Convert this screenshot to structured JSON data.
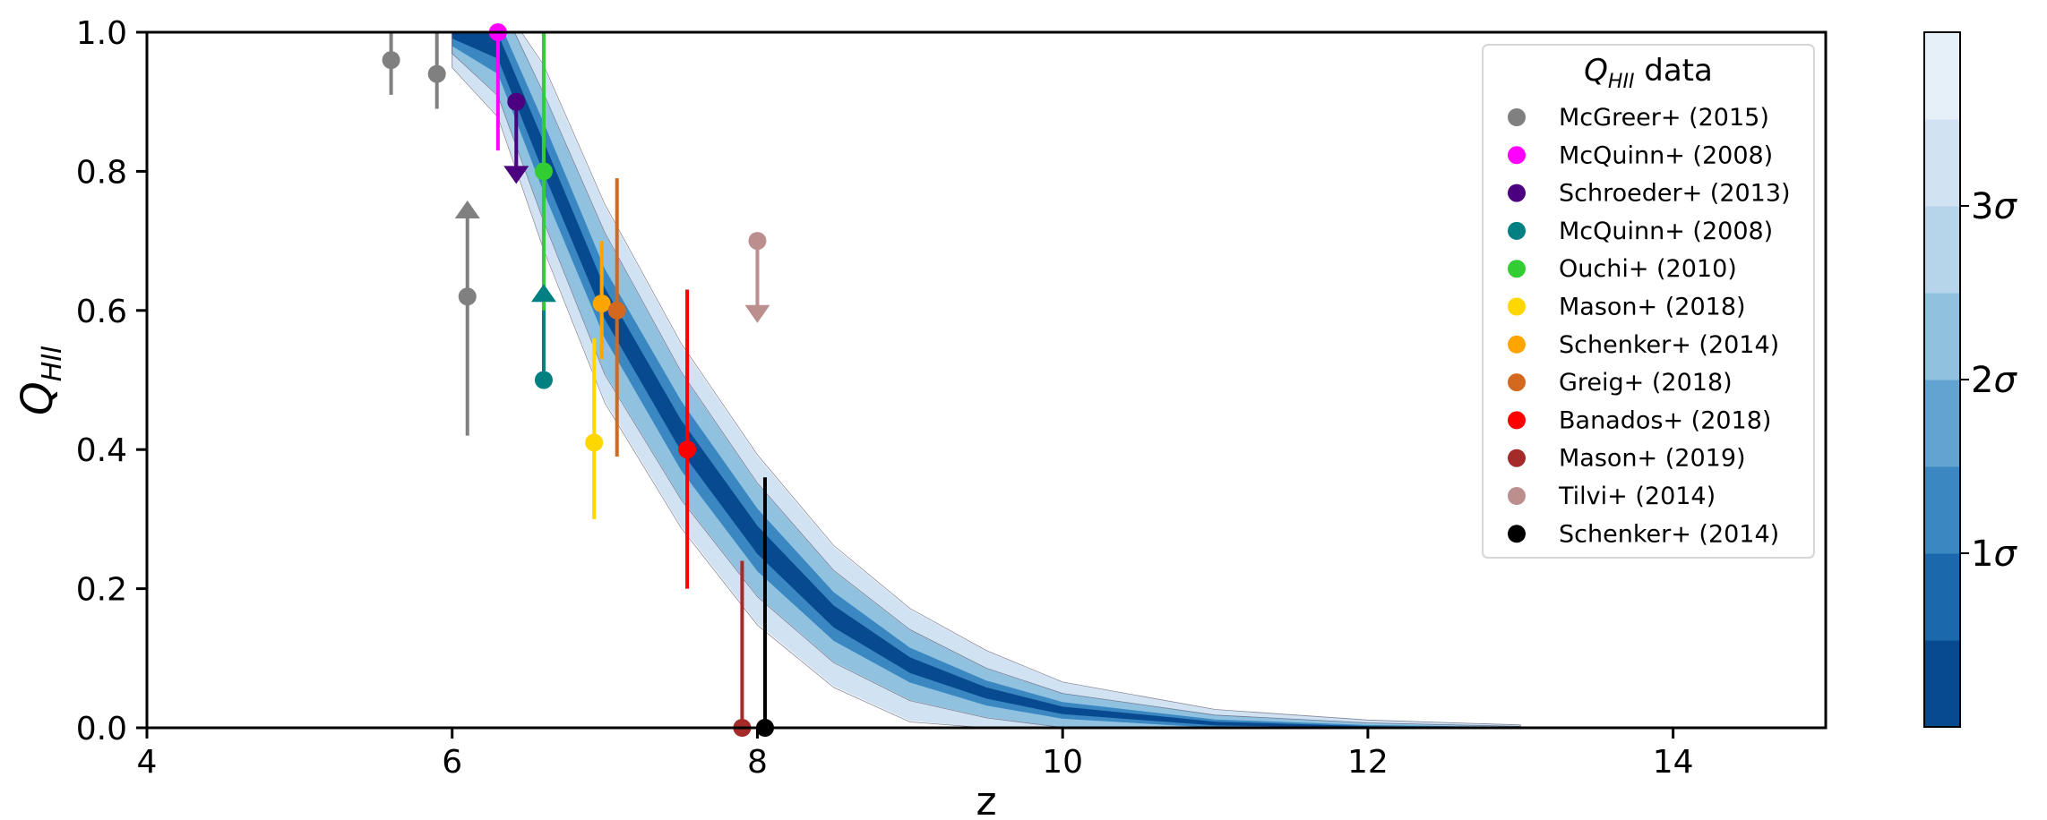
{
  "chart_data": {
    "type": "scatter",
    "xlabel": "z",
    "ylabel": "Q",
    "ylabel_sub": "HII",
    "xlim": [
      4,
      15
    ],
    "ylim": [
      0,
      1
    ],
    "x_ticks": [
      "4",
      "6",
      "8",
      "10",
      "12",
      "14"
    ],
    "y_ticks": [
      "0.0",
      "0.2",
      "0.4",
      "0.6",
      "0.8",
      "1.0"
    ],
    "x_tick_values": [
      4,
      6,
      8,
      10,
      12,
      14
    ],
    "y_tick_values": [
      0,
      0.2,
      0.4,
      0.6,
      0.8,
      1.0
    ],
    "legend_placement": "top-right",
    "legend_title": "Q",
    "legend_title_sub": "HII",
    "legend_title_suffix": " data",
    "posterior_band": {
      "z": [
        6.0,
        6.3,
        6.6,
        7.0,
        7.5,
        8.0,
        8.5,
        9.0,
        9.5,
        10.0,
        11.0,
        12.0,
        13.0
      ],
      "median": [
        1.0,
        0.98,
        0.82,
        0.61,
        0.42,
        0.27,
        0.16,
        0.09,
        0.05,
        0.025,
        0.006,
        0.001,
        0.0
      ],
      "sigma1_width": [
        0.02,
        0.04,
        0.05,
        0.05,
        0.05,
        0.045,
        0.035,
        0.025,
        0.018,
        0.012,
        0.006,
        0.003,
        0.001
      ],
      "sigma2_width": [
        0.03,
        0.07,
        0.09,
        0.1,
        0.09,
        0.08,
        0.065,
        0.05,
        0.035,
        0.024,
        0.012,
        0.006,
        0.002
      ],
      "sigma3_width": [
        0.05,
        0.1,
        0.13,
        0.14,
        0.13,
        0.12,
        0.1,
        0.08,
        0.06,
        0.04,
        0.02,
        0.01,
        0.004
      ]
    },
    "colorbar": {
      "colors": [
        "#084a8f",
        "#1c68ad",
        "#3a87c2",
        "#62a3d1",
        "#90c2e0",
        "#b6d4ea",
        "#d1e3f2",
        "#e6f0f9"
      ],
      "labels": [
        "1",
        "2",
        "3"
      ],
      "label_symbol": "σ",
      "label_levels": [
        1,
        2,
        3
      ]
    },
    "series": [
      {
        "name": "McGreer+ (2015)",
        "color": "#808080",
        "points": [
          {
            "x": 5.6,
            "y": 0.96,
            "yerr_low": 0.05,
            "yerr_high": 0.04,
            "limit": "none"
          },
          {
            "x": 5.9,
            "y": 0.94,
            "yerr_low": 0.05,
            "yerr_high": 0.06,
            "limit": "none"
          },
          {
            "x": 6.1,
            "y": 0.62,
            "yerr_low": 0.2,
            "yerr_high": 0.0,
            "limit": "lower"
          }
        ]
      },
      {
        "name": "McQuinn+ (2008)",
        "color": "#ff00ff",
        "points": [
          {
            "x": 6.3,
            "y": 1.0,
            "yerr_low": 0.17,
            "yerr_high": 0.0,
            "limit": "none"
          }
        ]
      },
      {
        "name": "Schroeder+ (2013)",
        "color": "#4b0080",
        "points": [
          {
            "x": 6.42,
            "y": 0.9,
            "yerr_low": 0.0,
            "yerr_high": 0.0,
            "limit": "upper"
          }
        ]
      },
      {
        "name": "McQuinn+ (2008)",
        "color": "#008080",
        "points": [
          {
            "x": 6.6,
            "y": 0.5,
            "yerr_low": 0.0,
            "yerr_high": 0.0,
            "limit": "lower"
          }
        ]
      },
      {
        "name": "Ouchi+ (2010)",
        "color": "#32cd32",
        "points": [
          {
            "x": 6.6,
            "y": 0.8,
            "yerr_low": 0.2,
            "yerr_high": 0.2,
            "limit": "none"
          }
        ]
      },
      {
        "name": "Mason+ (2018)",
        "color": "#ffd700",
        "points": [
          {
            "x": 6.93,
            "y": 0.41,
            "yerr_low": 0.11,
            "yerr_high": 0.15,
            "limit": "none"
          }
        ]
      },
      {
        "name": "Schenker+ (2014)",
        "color": "#ffa500",
        "points": [
          {
            "x": 6.98,
            "y": 0.61,
            "yerr_low": 0.08,
            "yerr_high": 0.09,
            "limit": "none"
          }
        ]
      },
      {
        "name": "Greig+ (2018)",
        "color": "#d2691e",
        "points": [
          {
            "x": 7.08,
            "y": 0.6,
            "yerr_low": 0.21,
            "yerr_high": 0.19,
            "limit": "none"
          }
        ]
      },
      {
        "name": "Banados+ (2018)",
        "color": "#ff0000",
        "points": [
          {
            "x": 7.54,
            "y": 0.4,
            "yerr_low": 0.2,
            "yerr_high": 0.23,
            "limit": "none"
          }
        ]
      },
      {
        "name": "Mason+ (2019)",
        "color": "#a52a2a",
        "points": [
          {
            "x": 7.9,
            "y": 0.0,
            "yerr_low": 0.0,
            "yerr_high": 0.24,
            "limit": "none"
          }
        ]
      },
      {
        "name": "Tilvi+ (2014)",
        "color": "#bc8f8f",
        "points": [
          {
            "x": 8.0,
            "y": 0.7,
            "yerr_low": 0.0,
            "yerr_high": 0.0,
            "limit": "upper"
          }
        ]
      },
      {
        "name": "Schenker+ (2014)",
        "color": "#000000",
        "points": [
          {
            "x": 8.05,
            "y": 0.0,
            "yerr_low": 0.0,
            "yerr_high": 0.36,
            "limit": "none"
          }
        ]
      }
    ]
  }
}
